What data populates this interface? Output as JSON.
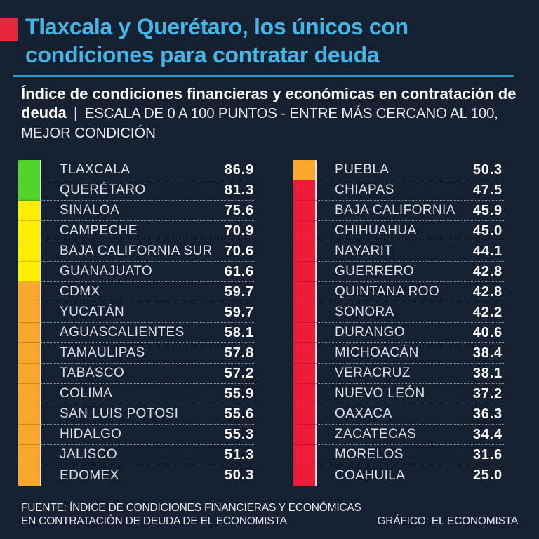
{
  "colors": {
    "background": "#152030",
    "title_blue": "#43b5e6",
    "underline_blue": "#2f9fd3",
    "accent_red": "#e8263e",
    "text_white": "#ffffff"
  },
  "header": {
    "title_line1": "Tlaxcala y Querétaro, los únicos con",
    "title_line2": "condiciones para contratar deuda"
  },
  "subtitle": {
    "bold": "Índice de condiciones financieras y económicas en contratación de deuda",
    "separator": "|",
    "note": "ESCALA DE 0 A 100 PUNTOS - ENTRE MÁS CERCANO AL 100, MEJOR CONDICIÓN"
  },
  "chart_data": {
    "type": "table",
    "title": "Índice de condiciones financieras y económicas en contratación de deuda",
    "scale_note": "ESCALA DE 0 A 100 PUNTOS - ENTRE MÁS CERCANO AL 100, MEJOR CONDICIÓN",
    "value_range": [
      0,
      100
    ],
    "columns": 2,
    "rows_per_column": 16,
    "tier_colors": {
      "green": "#53d42b",
      "yellow": "#fdee00",
      "orange": "#faa82b",
      "red": "#ee1b39"
    },
    "rows": [
      {
        "state": "TLAXCALA",
        "value": 86.9,
        "tier": "green"
      },
      {
        "state": "QUERÉTARO",
        "value": 81.3,
        "tier": "green"
      },
      {
        "state": "SINALOA",
        "value": 75.6,
        "tier": "yellow"
      },
      {
        "state": "CAMPECHE",
        "value": 70.9,
        "tier": "yellow"
      },
      {
        "state": "BAJA CALIFORNIA SUR",
        "value": 70.6,
        "tier": "yellow"
      },
      {
        "state": "GUANAJUATO",
        "value": 61.6,
        "tier": "yellow"
      },
      {
        "state": "CDMX",
        "value": 59.7,
        "tier": "orange"
      },
      {
        "state": "YUCATÁN",
        "value": 59.7,
        "tier": "orange"
      },
      {
        "state": "AGUASCALIENTES",
        "value": 58.1,
        "tier": "orange"
      },
      {
        "state": "TAMAULIPAS",
        "value": 57.8,
        "tier": "orange"
      },
      {
        "state": "TABASCO",
        "value": 57.2,
        "tier": "orange"
      },
      {
        "state": "COLIMA",
        "value": 55.9,
        "tier": "orange"
      },
      {
        "state": "SAN LUIS POTOSI",
        "value": 55.6,
        "tier": "orange"
      },
      {
        "state": "HIDALGO",
        "value": 55.3,
        "tier": "orange"
      },
      {
        "state": "JALISCO",
        "value": 51.3,
        "tier": "orange"
      },
      {
        "state": "EDOMEX",
        "value": 50.3,
        "tier": "orange"
      },
      {
        "state": "PUEBLA",
        "value": 50.3,
        "tier": "orange"
      },
      {
        "state": "CHIAPAS",
        "value": 47.5,
        "tier": "red"
      },
      {
        "state": "BAJA CALIFORNIA",
        "value": 45.9,
        "tier": "red"
      },
      {
        "state": "CHIHUAHUA",
        "value": 45.0,
        "tier": "red"
      },
      {
        "state": "NAYARIT",
        "value": 44.1,
        "tier": "red"
      },
      {
        "state": "GUERRERO",
        "value": 42.8,
        "tier": "red"
      },
      {
        "state": "QUINTANA ROO",
        "value": 42.8,
        "tier": "red"
      },
      {
        "state": "SONORA",
        "value": 42.2,
        "tier": "red"
      },
      {
        "state": "DURANGO",
        "value": 40.6,
        "tier": "red"
      },
      {
        "state": "MICHOACÁN",
        "value": 38.4,
        "tier": "red"
      },
      {
        "state": "VERACRUZ",
        "value": 38.1,
        "tier": "red"
      },
      {
        "state": "NUEVO LEÓN",
        "value": 37.2,
        "tier": "red"
      },
      {
        "state": "OAXACA",
        "value": 36.3,
        "tier": "red"
      },
      {
        "state": "ZACATECAS",
        "value": 34.4,
        "tier": "red"
      },
      {
        "state": "MORELOS",
        "value": 31.6,
        "tier": "red"
      },
      {
        "state": "COAHUILA",
        "value": 25.0,
        "tier": "red"
      }
    ]
  },
  "footer": {
    "source_line1": "FUENTE: ÍNDICE DE CONDICIONES FINANCIERAS Y ECONÓMICAS",
    "source_line2": "EN CONTRATACIÓN DE DEUDA DE EL ECONOMISTA",
    "credit": "GRÁFICO: EL ECONOMISTA"
  }
}
